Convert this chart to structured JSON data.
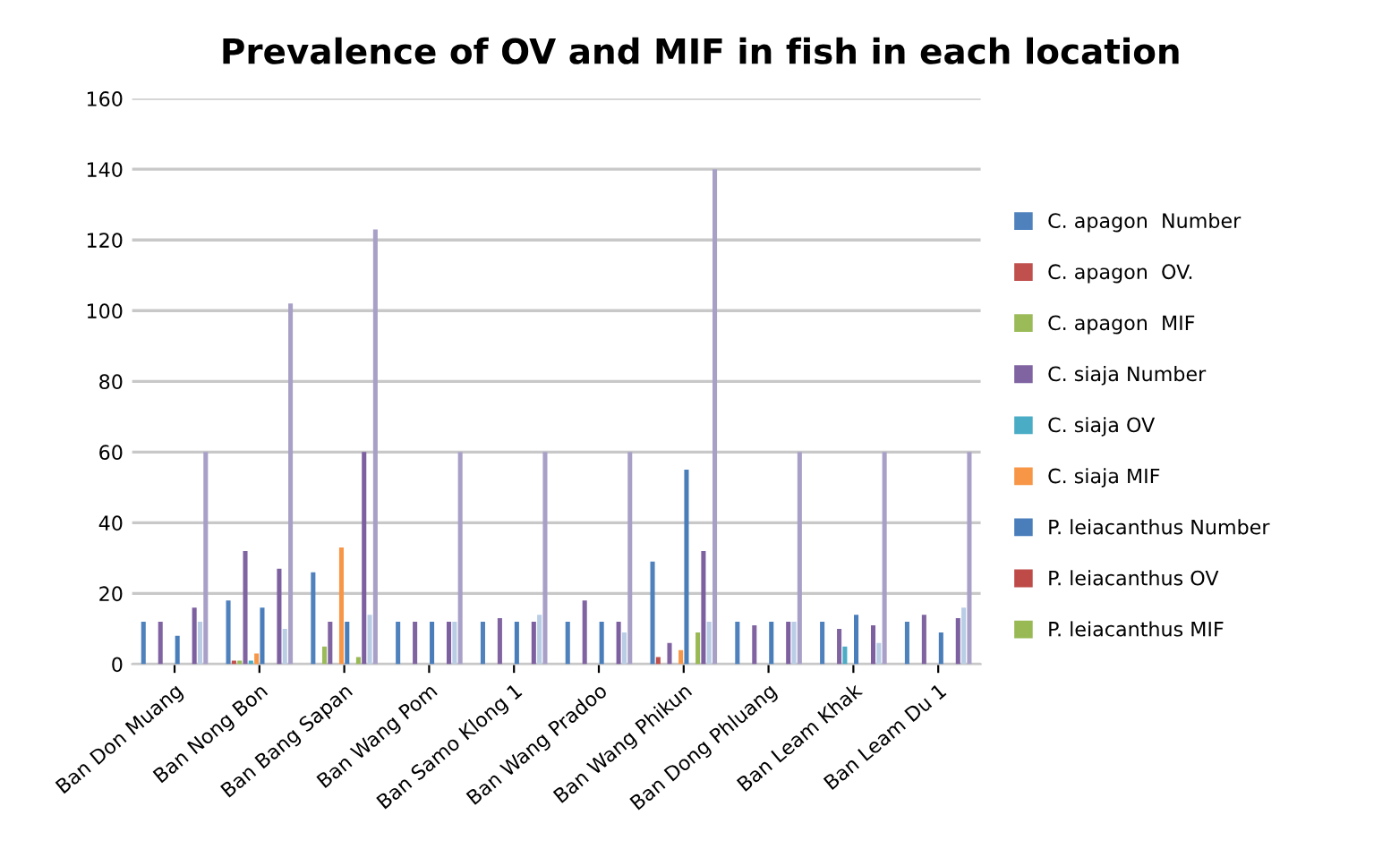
{
  "chart_data": {
    "type": "bar",
    "title": "Prevalence of OV and MIF in fish in each location",
    "categories": [
      "Ban Don Muang",
      "Ban Nong Bon",
      "Ban Bang Sapan",
      "Ban Wang Pom",
      "Ban Samo Klong 1",
      "Ban Wang Pradoo",
      "Ban Wang Phikun",
      "Ban Dong Phluang",
      "Ban Leam Khak",
      "Ban Leam Du 1"
    ],
    "series": [
      {
        "name": "C. apagon  Number",
        "color": "#4f81bd",
        "values": [
          12,
          18,
          26,
          12,
          12,
          12,
          29,
          12,
          12,
          12
        ]
      },
      {
        "name": "C. apagon  OV.",
        "color": "#c0504d",
        "values": [
          0,
          1,
          0,
          0,
          0,
          0,
          2,
          0,
          0,
          0
        ]
      },
      {
        "name": "C. apagon  MIF",
        "color": "#9bbb59",
        "values": [
          0,
          1,
          5,
          0,
          0,
          0,
          0,
          0,
          0,
          0
        ]
      },
      {
        "name": "C. siaja Number",
        "color": "#8064a2",
        "values": [
          12,
          32,
          12,
          12,
          13,
          18,
          6,
          11,
          10,
          14
        ]
      },
      {
        "name": "C. siaja OV",
        "color": "#4bacc6",
        "values": [
          0,
          1,
          0,
          0,
          0,
          0,
          0,
          0,
          5,
          0
        ]
      },
      {
        "name": "C. siaja MIF",
        "color": "#f79646",
        "values": [
          0,
          3,
          33,
          0,
          0,
          0,
          4,
          0,
          0,
          0
        ]
      },
      {
        "name": "P. leiacanthus Number",
        "color": "#4a7ebb",
        "values": [
          8,
          16,
          12,
          12,
          12,
          12,
          55,
          12,
          14,
          9
        ]
      },
      {
        "name": "P. leiacanthus OV",
        "color": "#be4b48",
        "values": [
          0,
          0,
          0,
          0,
          0,
          0,
          0,
          0,
          0,
          0
        ]
      },
      {
        "name": "P. leiacanthus MIF",
        "color": "#98b954",
        "values": [
          0,
          0,
          2,
          0,
          0,
          0,
          9,
          0,
          0,
          0
        ]
      },
      {
        "color": "#7d60a0",
        "values": [
          16,
          27,
          60,
          12,
          12,
          12,
          32,
          12,
          11,
          13
        ]
      },
      {
        "color": "#b9cde5",
        "values": [
          12,
          10,
          14,
          12,
          14,
          9,
          12,
          12,
          6,
          16
        ]
      },
      {
        "color": "#a9a0c8",
        "values": [
          60,
          102,
          123,
          60,
          60,
          60,
          140,
          60,
          60,
          60
        ]
      }
    ],
    "ylim": [
      0,
      160
    ],
    "yticks": [
      0,
      20,
      40,
      60,
      80,
      100,
      120,
      140,
      160
    ],
    "grid": "y",
    "legend": "right"
  }
}
